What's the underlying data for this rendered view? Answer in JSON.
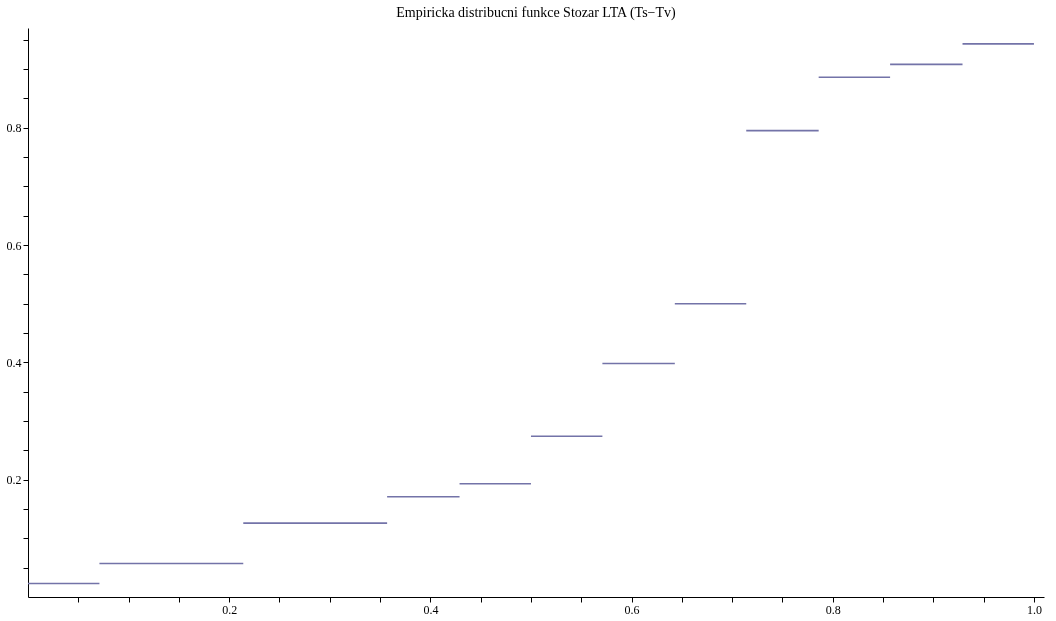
{
  "chart_data": {
    "type": "line",
    "title": "Empiricka distribucni funkce Stozar LTA (Ts−Tv)",
    "x": [
      0,
      0.071,
      null,
      0.071,
      0.214,
      null,
      0.214,
      0.357,
      null,
      0.357,
      0.429,
      null,
      0.429,
      0.5,
      null,
      0.5,
      0.571,
      null,
      0.571,
      0.643,
      null,
      0.643,
      0.714,
      null,
      0.714,
      0.786,
      null,
      0.786,
      0.857,
      null,
      0.857,
      0.929,
      null,
      0.929,
      1.0
    ],
    "series": [
      {
        "color": "#7373a8",
        "values": [
          0.023,
          0.023,
          null,
          0.057,
          0.057,
          null,
          0.126,
          0.126,
          null,
          0.171,
          0.171,
          null,
          0.193,
          0.193,
          null,
          0.274,
          0.274,
          null,
          0.398,
          0.398,
          null,
          0.5,
          0.5,
          null,
          0.795,
          0.795,
          null,
          0.886,
          0.886,
          null,
          0.908,
          0.908,
          null,
          0.943,
          0.943
        ]
      }
    ],
    "xlim": [
      0,
      1.01
    ],
    "ylim": [
      0,
      0.97
    ],
    "xticks": [
      {
        "value": 0.05,
        "label": null
      },
      {
        "value": 0.1,
        "label": null
      },
      {
        "value": 0.15,
        "label": null
      },
      0.2,
      {
        "value": 0.25,
        "label": null
      },
      {
        "value": 0.3,
        "label": null
      },
      {
        "value": 0.35,
        "label": null
      },
      0.4,
      {
        "value": 0.45,
        "label": null
      },
      {
        "value": 0.5,
        "label": null
      },
      {
        "value": 0.55,
        "label": null
      },
      0.6,
      {
        "value": 0.65,
        "label": null
      },
      {
        "value": 0.7,
        "label": null
      },
      {
        "value": 0.75,
        "label": null
      },
      0.8,
      {
        "value": 0.85,
        "label": null
      },
      {
        "value": 0.9,
        "label": null
      },
      {
        "value": 0.95,
        "label": null
      },
      {
        "value": 1,
        "label": "1.0"
      }
    ],
    "yticks": [
      {
        "value": 0.05,
        "label": null
      },
      {
        "value": 0.1,
        "label": null
      },
      {
        "value": 0.15,
        "label": null
      },
      0.2,
      {
        "value": 0.25,
        "label": null
      },
      {
        "value": 0.3,
        "label": null
      },
      {
        "value": 0.35,
        "label": null
      },
      0.4,
      {
        "value": 0.45,
        "label": null
      },
      {
        "value": 0.5,
        "label": null
      },
      {
        "value": 0.55,
        "label": null
      },
      0.6,
      {
        "value": 0.65,
        "label": null
      },
      {
        "value": 0.7,
        "label": null
      },
      {
        "value": 0.75,
        "label": null
      },
      0.8,
      {
        "value": 0.85,
        "label": null
      },
      {
        "value": 0.9,
        "label": null
      },
      {
        "value": 0.95,
        "label": null
      }
    ],
    "grid": false,
    "marker": "none",
    "line_style": "solid"
  }
}
